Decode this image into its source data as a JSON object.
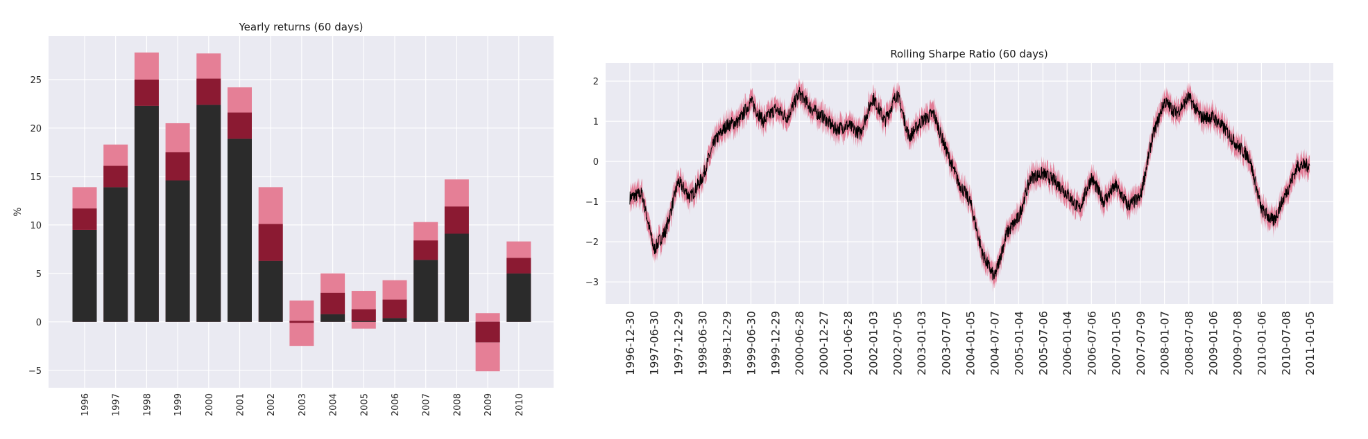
{
  "colors": {
    "panel_bg": "#eaeaf2",
    "grid": "#ffffff",
    "bar_dark": "#2b2b2b",
    "bar_mid": "#8b1a32",
    "bar_light": "#e57f96",
    "line": "#000000",
    "band": "#e0607e"
  },
  "chart_data": [
    {
      "type": "bar",
      "title": "Yearly returns (60 days)",
      "ylabel": "%",
      "xlabel": "",
      "ylim": [
        -6.8,
        29.5
      ],
      "yticks": [
        -5,
        0,
        5,
        10,
        15,
        20,
        25
      ],
      "categories": [
        "1996",
        "1997",
        "1998",
        "1999",
        "2000",
        "2001",
        "2002",
        "2003",
        "2004",
        "2005",
        "2006",
        "2007",
        "2008",
        "2009",
        "2010"
      ],
      "median": [
        9.5,
        13.9,
        22.3,
        14.6,
        22.4,
        18.9,
        6.3,
        0.1,
        0.8,
        0.1,
        0.4,
        6.4,
        9.1,
        -2.1,
        5.0
      ],
      "inner_band": [
        [
          9.5,
          11.7
        ],
        [
          13.9,
          16.1
        ],
        [
          22.3,
          25.0
        ],
        [
          14.6,
          17.5
        ],
        [
          22.4,
          25.1
        ],
        [
          18.9,
          21.6
        ],
        [
          6.3,
          10.1
        ],
        [
          -0.1,
          0.1
        ],
        [
          0.8,
          3.0
        ],
        [
          0.1,
          1.3
        ],
        [
          0.4,
          2.3
        ],
        [
          6.4,
          8.4
        ],
        [
          9.1,
          11.9
        ],
        [
          -2.1,
          0.0
        ],
        [
          5.0,
          6.6
        ]
      ],
      "outer_band": [
        [
          0,
          13.9
        ],
        [
          0,
          18.3
        ],
        [
          0,
          27.8
        ],
        [
          0,
          20.5
        ],
        [
          0,
          27.7
        ],
        [
          0,
          24.2
        ],
        [
          0,
          13.9
        ],
        [
          -2.5,
          2.2
        ],
        [
          0,
          5.0
        ],
        [
          -0.7,
          3.2
        ],
        [
          0,
          4.3
        ],
        [
          0,
          10.3
        ],
        [
          0,
          14.7
        ],
        [
          -5.1,
          0.9
        ],
        [
          0,
          8.3
        ]
      ],
      "grid": true
    },
    {
      "type": "line",
      "title": "Rolling Sharpe Ratio (60 days)",
      "xlabel": "",
      "ylabel": "",
      "ylim": [
        -3.55,
        2.45
      ],
      "yticks": [
        -3,
        -2,
        -1,
        0,
        1,
        2
      ],
      "xticks": [
        "1996-12-30",
        "1997-06-30",
        "1997-12-29",
        "1998-06-30",
        "1998-12-29",
        "1999-06-30",
        "1999-12-29",
        "2000-06-28",
        "2000-12-27",
        "2001-06-28",
        "2002-01-03",
        "2002-07-05",
        "2003-01-03",
        "2003-07-07",
        "2004-01-05",
        "2004-07-07",
        "2005-01-04",
        "2005-07-06",
        "2006-01-04",
        "2006-07-06",
        "2007-01-05",
        "2007-07-09",
        "2008-01-07",
        "2008-07-08",
        "2009-01-06",
        "2009-07-08",
        "2010-01-06",
        "2010-07-08",
        "2011-01-05"
      ],
      "x_range": [
        "1996-07-01",
        "2011-07-01"
      ],
      "x": [
        "1996-12-30",
        "1997-03-31",
        "1997-06-30",
        "1997-09-30",
        "1997-12-29",
        "1998-03-31",
        "1998-06-30",
        "1998-09-30",
        "1998-12-29",
        "1999-03-31",
        "1999-06-30",
        "1999-09-30",
        "1999-12-29",
        "2000-03-31",
        "2000-06-28",
        "2000-09-29",
        "2000-12-27",
        "2001-03-30",
        "2001-06-28",
        "2001-09-28",
        "2002-01-03",
        "2002-04-03",
        "2002-07-05",
        "2002-10-03",
        "2003-01-03",
        "2003-04-04",
        "2003-07-07",
        "2003-10-06",
        "2004-01-05",
        "2004-04-06",
        "2004-07-07",
        "2004-10-05",
        "2005-01-04",
        "2005-04-05",
        "2005-07-06",
        "2005-10-05",
        "2006-01-04",
        "2006-04-05",
        "2006-07-06",
        "2006-10-05",
        "2007-01-05",
        "2007-04-06",
        "2007-07-09",
        "2007-10-08",
        "2008-01-07",
        "2008-04-07",
        "2008-07-08",
        "2008-10-07",
        "2009-01-06",
        "2009-04-07",
        "2009-07-08",
        "2009-10-07",
        "2010-01-06",
        "2010-04-07",
        "2010-07-08",
        "2010-10-07",
        "2011-01-05"
      ],
      "values": [
        -0.9,
        -0.8,
        -2.2,
        -1.7,
        -0.5,
        -0.9,
        -0.4,
        0.5,
        0.9,
        1.0,
        1.5,
        1.0,
        1.3,
        1.1,
        1.7,
        1.3,
        1.1,
        0.8,
        0.9,
        0.7,
        1.6,
        1.0,
        1.7,
        0.6,
        1.0,
        1.2,
        0.3,
        -0.5,
        -1.0,
        -2.3,
        -2.9,
        -1.8,
        -1.4,
        -0.4,
        -0.3,
        -0.5,
        -0.8,
        -1.2,
        -0.4,
        -1.0,
        -0.6,
        -1.1,
        -0.9,
        0.6,
        1.5,
        1.2,
        1.6,
        1.1,
        1.1,
        0.8,
        0.4,
        0.1,
        -1.2,
        -1.5,
        -0.8,
        -0.1,
        -0.1
      ],
      "grid": true
    }
  ]
}
